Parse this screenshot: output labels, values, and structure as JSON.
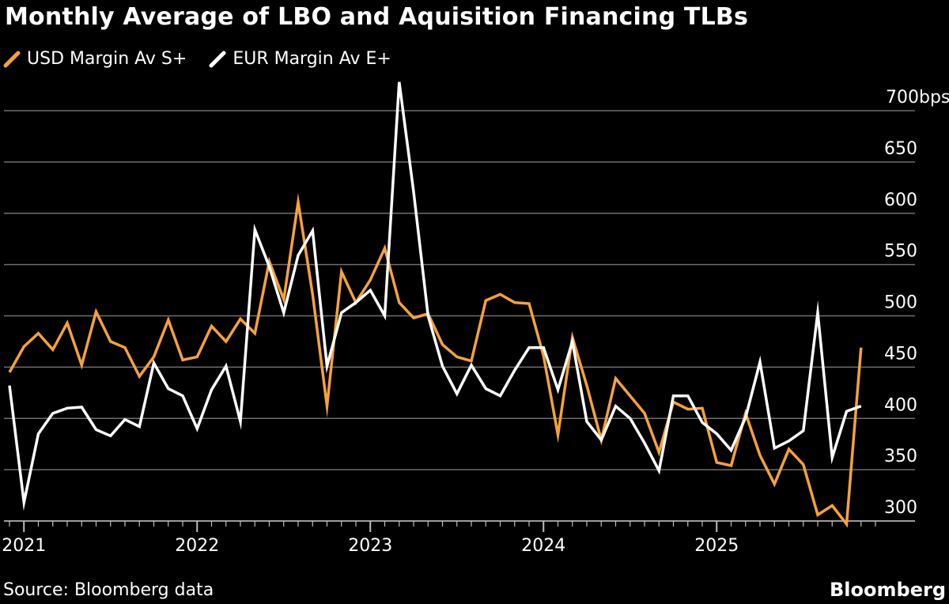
{
  "chart_data": {
    "type": "line",
    "title": "Monthly Average of LBO and Aquisition Financing TLBs",
    "source": "Source: Bloomberg data",
    "brand": "Bloomberg",
    "xlabel": "",
    "ylabel": "",
    "ylim": [
      290,
      720
    ],
    "y_ticks": [
      {
        "value": 700,
        "label": "700bps"
      },
      {
        "value": 650,
        "label": "650"
      },
      {
        "value": 600,
        "label": "600"
      },
      {
        "value": 550,
        "label": "550"
      },
      {
        "value": 500,
        "label": "500"
      },
      {
        "value": 450,
        "label": "450"
      },
      {
        "value": 400,
        "label": "400"
      },
      {
        "value": 350,
        "label": "350"
      },
      {
        "value": 300,
        "label": "300"
      }
    ],
    "x_ticks": [
      {
        "index": 1,
        "label": "2021"
      },
      {
        "index": 13,
        "label": "2022"
      },
      {
        "index": 25,
        "label": "2023"
      },
      {
        "index": 37,
        "label": "2024"
      },
      {
        "index": 49,
        "label": "2025"
      }
    ],
    "x_start": "2020-12",
    "legend_position": "top-left",
    "series": [
      {
        "name": "USD Margin Av S+",
        "color": "#f5a23a",
        "values": [
          445,
          470,
          483,
          467,
          493,
          452,
          504,
          475,
          469,
          441,
          460,
          496,
          457,
          460,
          490,
          475,
          497,
          483,
          553,
          516,
          611,
          521,
          412,
          543,
          513,
          535,
          566,
          513,
          498,
          502,
          472,
          460,
          456,
          515,
          521,
          513,
          512,
          461,
          384,
          479,
          432,
          379,
          439,
          422,
          405,
          367,
          416,
          409,
          410,
          357,
          354,
          405,
          364,
          336,
          370,
          355,
          306,
          315,
          297,
          469
        ]
      },
      {
        "name": "EUR Margin Av E+",
        "color": "#ffffff",
        "values": [
          432,
          318,
          385,
          405,
          410,
          411,
          389,
          383,
          399,
          392,
          454,
          429,
          422,
          390,
          428,
          451,
          397,
          584,
          548,
          503,
          559,
          583,
          451,
          503,
          513,
          525,
          500,
          728,
          621,
          500,
          451,
          424,
          452,
          429,
          422,
          447,
          469,
          469,
          428,
          475,
          397,
          379,
          412,
          400,
          376,
          349,
          422,
          422,
          396,
          385,
          369,
          401,
          455,
          371,
          378,
          388,
          503,
          362,
          407,
          412
        ]
      }
    ]
  }
}
